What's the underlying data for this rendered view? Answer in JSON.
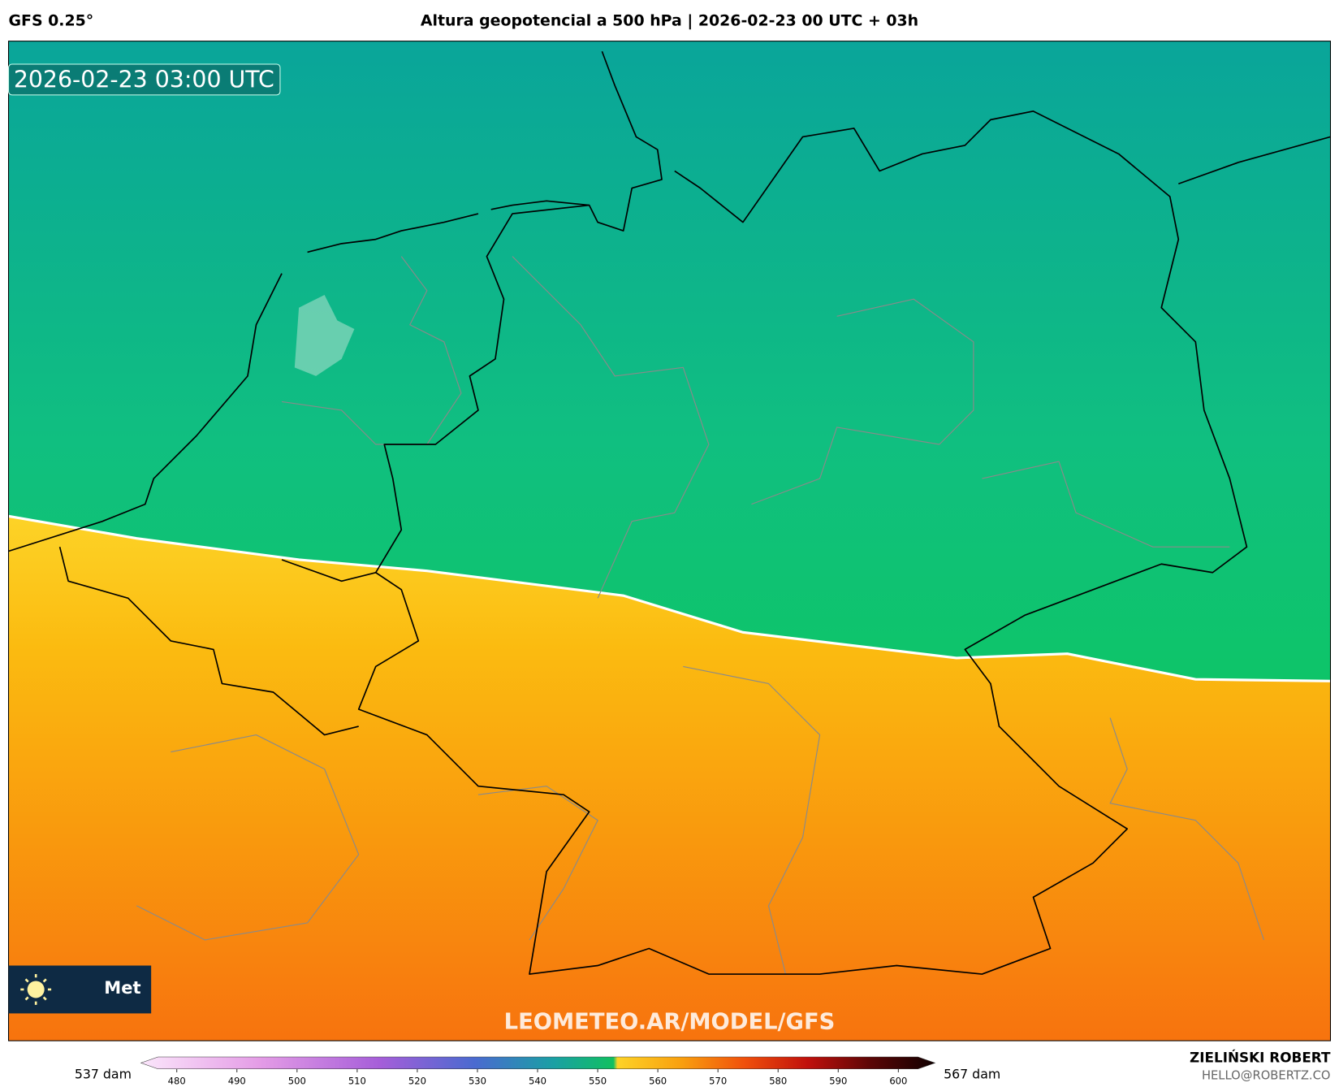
{
  "header": {
    "model": "GFS 0.25°",
    "title": "Altura geopotencial a 500 hPa | 2026-02-23 00 UTC + 03h"
  },
  "map": {
    "valid_time": "2026-02-23 03:00 UTC",
    "logo_text": "Met",
    "watermark": "LEOMETEO.AR/MODEL/GFS"
  },
  "colorbar": {
    "min_label": "537 dam",
    "max_label": "567 dam",
    "ticks": [
      480,
      490,
      500,
      510,
      520,
      530,
      540,
      550,
      560,
      570,
      580,
      590,
      600
    ]
  },
  "credits": {
    "author": "ZIELIŃSKI ROBERT",
    "email": "HELLO@ROBERTZ.CO"
  }
}
